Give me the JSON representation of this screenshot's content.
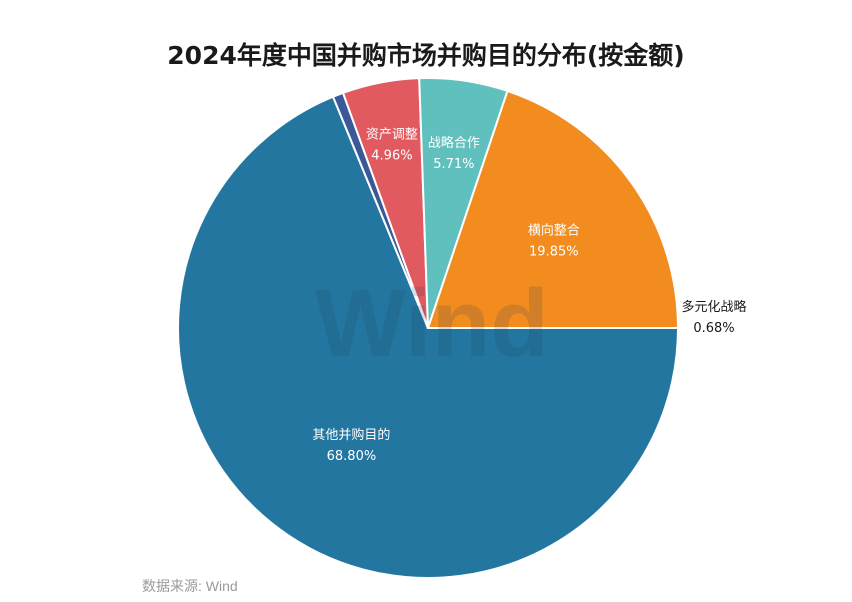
{
  "chart_data": {
    "type": "pie",
    "title": "2024年度中国并购市场并购目的分布(按金额)",
    "source": "数据来源: Wind",
    "watermark": "Wind",
    "unit": "%",
    "slices": [
      {
        "label": "其他并购目的",
        "value": 68.8,
        "display": "68.80%",
        "color": "#23769f",
        "label_color": "#ffffff"
      },
      {
        "label": "多元化战略",
        "value": 0.68,
        "display": "0.68%",
        "color": "#3b5998",
        "label_color": "#1a1a1a"
      },
      {
        "label": "资产调整",
        "value": 4.96,
        "display": "4.96%",
        "color": "#e05a5f",
        "label_color": "#ffffff"
      },
      {
        "label": "战略合作",
        "value": 5.71,
        "display": "5.71%",
        "color": "#5fc0bd",
        "label_color": "#ffffff"
      },
      {
        "label": "横向整合",
        "value": 19.85,
        "display": "19.85%",
        "color": "#f28c1e",
        "label_color": "#ffffff"
      }
    ]
  }
}
